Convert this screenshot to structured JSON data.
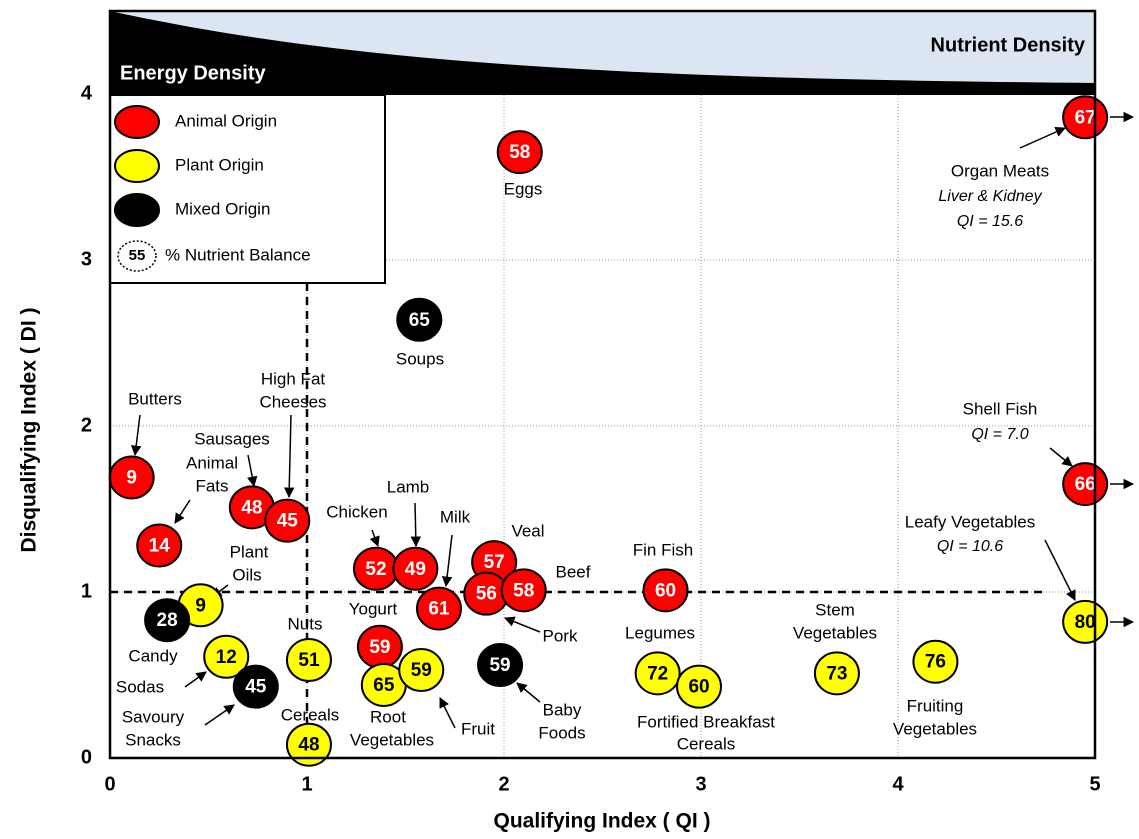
{
  "chart_data": {
    "type": "scatter",
    "xlabel": "Qualifying  Index  ( QI )",
    "ylabel": "Disqualifying  Index  ( DI )",
    "xlim": [
      0,
      5
    ],
    "ylim": [
      0,
      4.5
    ],
    "xticks": [
      0,
      1,
      2,
      3,
      4,
      5
    ],
    "yticks": [
      0,
      1,
      2,
      3,
      4
    ],
    "grid": true,
    "reference_lines": {
      "x": 1,
      "y": 1
    },
    "band_labels": {
      "left": "Energy  Density",
      "right": "Nutrient  Density"
    },
    "size_legend": {
      "label": "% Nutrient Balance",
      "sample": 55
    },
    "series": [
      {
        "name": "Animal Origin",
        "color": "#ff0000",
        "label_color": "#ffffff",
        "x": [
          4.95,
          2.08,
          0.11,
          0.25,
          0.72,
          0.9,
          1.35,
          1.55,
          1.95,
          1.67,
          1.91,
          2.1,
          2.82,
          4.95,
          1.37
        ],
        "y": [
          3.86,
          3.65,
          1.69,
          1.28,
          1.51,
          1.43,
          1.14,
          1.14,
          1.18,
          0.9,
          0.99,
          1.01,
          1.01,
          1.65,
          0.67
        ],
        "balance": [
          67,
          58,
          9,
          14,
          48,
          45,
          52,
          49,
          57,
          61,
          56,
          58,
          60,
          66,
          59
        ]
      },
      {
        "name": "Plant Origin",
        "color": "#ffff00",
        "label_color": "#000000",
        "x": [
          0.46,
          0.59,
          1.01,
          1.01,
          1.39,
          1.58,
          2.78,
          2.99,
          3.69,
          4.19,
          4.95
        ],
        "y": [
          0.92,
          0.61,
          0.59,
          0.08,
          0.44,
          0.53,
          0.51,
          0.43,
          0.51,
          0.58,
          0.82
        ],
        "balance": [
          9,
          12,
          51,
          48,
          65,
          59,
          72,
          60,
          73,
          76,
          80
        ]
      },
      {
        "name": "Mixed Origin",
        "color": "#000000",
        "label_color": "#ffffff",
        "x": [
          1.57,
          0.29,
          0.74,
          1.98
        ],
        "y": [
          2.64,
          0.83,
          0.43,
          0.56
        ],
        "balance": [
          65,
          28,
          45,
          59
        ]
      }
    ],
    "annotations": [
      "Organ  Meats",
      "Liver & Kidney",
      "QI = 15.6",
      "Eggs",
      "Soups",
      "Butters",
      "High Fat",
      "Cheeses",
      "Sausages",
      "Animal",
      "Fats",
      "Plant",
      "Oils",
      "Chicken",
      "Lamb",
      "Milk",
      "Veal",
      "Beef",
      "Yogurt",
      "Pork",
      "Fin Fish",
      "Shell Fish",
      "QI = 7.0",
      "Leafy Vegetables",
      "QI = 10.6",
      "Candy",
      "Sodas",
      "Savoury",
      "Snacks",
      "Nuts",
      "Cereals",
      "Root",
      "Vegetables",
      "Fruit",
      "Baby",
      "Foods",
      "Legumes",
      "Fortified Breakfast",
      "Cereals",
      "Stem",
      "Vegetables",
      "Fruiting",
      "Vegetables"
    ]
  }
}
